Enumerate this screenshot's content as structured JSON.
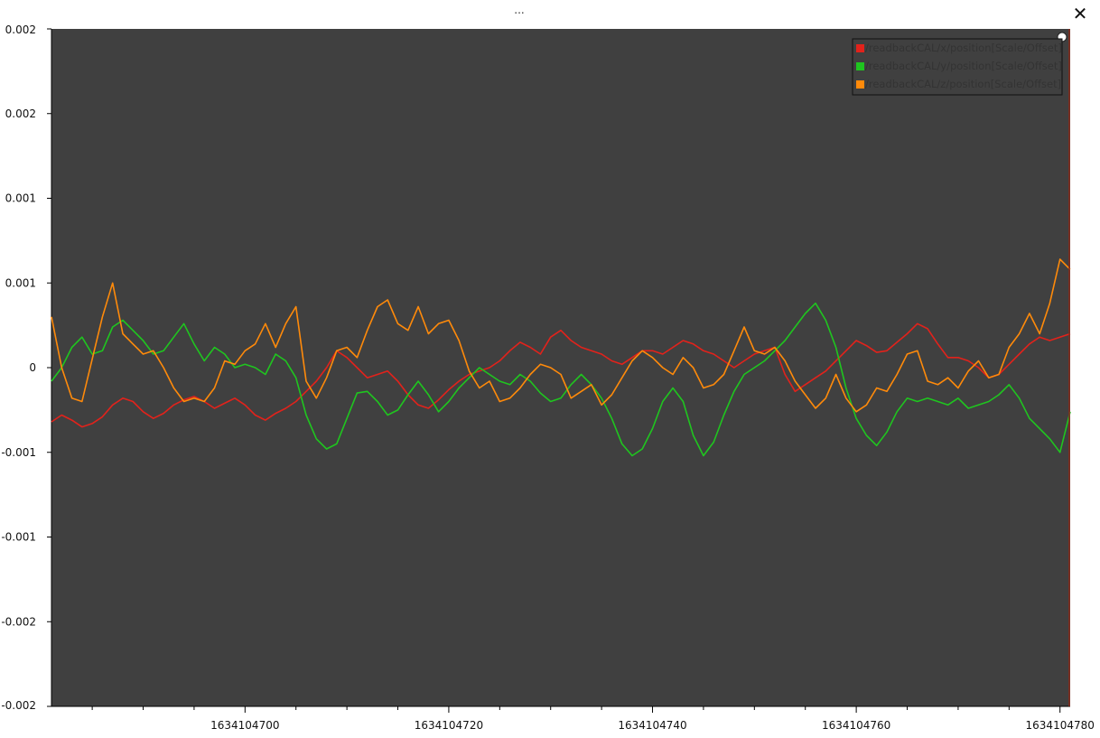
{
  "window": {
    "title": "...",
    "close_glyph": "✕"
  },
  "colors": {
    "background": "#ffffff",
    "plot_background": "#404040",
    "x": "#e2221b",
    "y": "#1fc51f",
    "z": "#ff8a0a",
    "legend_border": "#111111",
    "legend_text": "#333333"
  },
  "chart_data": {
    "type": "line",
    "title": "",
    "xlabel": "",
    "ylabel": "",
    "xlim": [
      1634104681,
      1634104781
    ],
    "ylim": [
      -0.002,
      0.002
    ],
    "grid": false,
    "legend_position": "top-right",
    "x_ticks": [
      {
        "value": 1634104700,
        "label": "1634104700"
      },
      {
        "value": 1634104720,
        "label": "1634104720"
      },
      {
        "value": 1634104740,
        "label": "1634104740"
      },
      {
        "value": 1634104760,
        "label": "1634104760"
      },
      {
        "value": 1634104780,
        "label": "1634104780"
      }
    ],
    "y_ticks": [
      {
        "value": 0.002,
        "label": "0.002"
      },
      {
        "value": 0.0015,
        "label": "0.002"
      },
      {
        "value": 0.001,
        "label": "0.001"
      },
      {
        "value": 0.0005,
        "label": "0.001"
      },
      {
        "value": 0.0,
        "label": "0"
      },
      {
        "value": -0.0005,
        "label": "-0.001"
      },
      {
        "value": -0.001,
        "label": "-0.001"
      },
      {
        "value": -0.0015,
        "label": "-0.002"
      },
      {
        "value": -0.002,
        "label": "-0.002"
      }
    ],
    "series": [
      {
        "name": "/readbackCAL/x/position[Scale/Offset]",
        "color_key": "x",
        "x": [
          1634104681,
          1634104682,
          1634104683,
          1634104684,
          1634104685,
          1634104686,
          1634104687,
          1634104688,
          1634104689,
          1634104690,
          1634104691,
          1634104692,
          1634104693,
          1634104694,
          1634104695,
          1634104696,
          1634104697,
          1634104698,
          1634104699,
          1634104700,
          1634104701,
          1634104702,
          1634104703,
          1634104704,
          1634104705,
          1634104706,
          1634104707,
          1634104708,
          1634104709,
          1634104710,
          1634104711,
          1634104712,
          1634104713,
          1634104714,
          1634104715,
          1634104716,
          1634104717,
          1634104718,
          1634104719,
          1634104720,
          1634104721,
          1634104722,
          1634104723,
          1634104724,
          1634104725,
          1634104726,
          1634104727,
          1634104728,
          1634104729,
          1634104730,
          1634104731,
          1634104732,
          1634104733,
          1634104734,
          1634104735,
          1634104736,
          1634104737,
          1634104738,
          1634104739,
          1634104740,
          1634104741,
          1634104742,
          1634104743,
          1634104744,
          1634104745,
          1634104746,
          1634104747,
          1634104748,
          1634104749,
          1634104750,
          1634104751,
          1634104752,
          1634104753,
          1634104754,
          1634104755,
          1634104756,
          1634104757,
          1634104758,
          1634104759,
          1634104760,
          1634104761,
          1634104762,
          1634104763,
          1634104764,
          1634104765,
          1634104766,
          1634104767,
          1634104768,
          1634104769,
          1634104770,
          1634104771,
          1634104772,
          1634104773,
          1634104774,
          1634104775,
          1634104776,
          1634104777,
          1634104778,
          1634104779,
          1634104780,
          1634104781
        ],
        "y": [
          -0.00032,
          -0.00028,
          -0.00031,
          -0.00035,
          -0.00033,
          -0.00029,
          -0.00022,
          -0.00018,
          -0.0002,
          -0.00026,
          -0.0003,
          -0.00027,
          -0.00022,
          -0.00019,
          -0.00017,
          -0.0002,
          -0.00024,
          -0.00021,
          -0.00018,
          -0.00022,
          -0.00028,
          -0.00031,
          -0.00027,
          -0.00024,
          -0.0002,
          -0.00014,
          -8e-05,
          0.0,
          0.0001,
          6e-05,
          0.0,
          -6e-05,
          -4e-05,
          -2e-05,
          -8e-05,
          -0.00016,
          -0.00022,
          -0.00024,
          -0.00019,
          -0.00013,
          -8e-05,
          -4e-05,
          -2e-05,
          0.0,
          4e-05,
          0.0001,
          0.00015,
          0.00012,
          8e-05,
          0.00018,
          0.00022,
          0.00016,
          0.00012,
          0.0001,
          8e-05,
          4e-05,
          2e-05,
          6e-05,
          0.0001,
          0.0001,
          8e-05,
          0.00012,
          0.00016,
          0.00014,
          0.0001,
          8e-05,
          4e-05,
          0.0,
          4e-05,
          8e-05,
          0.0001,
          0.00012,
          -4e-05,
          -0.00014,
          -0.0001,
          -6e-05,
          -2e-05,
          4e-05,
          0.0001,
          0.00016,
          0.00013,
          9e-05,
          0.0001,
          0.00015,
          0.0002,
          0.00026,
          0.00023,
          0.00014,
          6e-05,
          6e-05,
          4e-05,
          0.0,
          -6e-05,
          -4e-05,
          2e-05,
          8e-05,
          0.00014,
          0.00018,
          0.00016,
          0.00018,
          0.0002
        ]
      },
      {
        "name": "/readbackCAL/y/position[Scale/Offset]",
        "color_key": "y",
        "x": [
          1634104681,
          1634104682,
          1634104683,
          1634104684,
          1634104685,
          1634104686,
          1634104687,
          1634104688,
          1634104689,
          1634104690,
          1634104691,
          1634104692,
          1634104693,
          1634104694,
          1634104695,
          1634104696,
          1634104697,
          1634104698,
          1634104699,
          1634104700,
          1634104701,
          1634104702,
          1634104703,
          1634104704,
          1634104705,
          1634104706,
          1634104707,
          1634104708,
          1634104709,
          1634104710,
          1634104711,
          1634104712,
          1634104713,
          1634104714,
          1634104715,
          1634104716,
          1634104717,
          1634104718,
          1634104719,
          1634104720,
          1634104721,
          1634104722,
          1634104723,
          1634104724,
          1634104725,
          1634104726,
          1634104727,
          1634104728,
          1634104729,
          1634104730,
          1634104731,
          1634104732,
          1634104733,
          1634104734,
          1634104735,
          1634104736,
          1634104737,
          1634104738,
          1634104739,
          1634104740,
          1634104741,
          1634104742,
          1634104743,
          1634104744,
          1634104745,
          1634104746,
          1634104747,
          1634104748,
          1634104749,
          1634104750,
          1634104751,
          1634104752,
          1634104753,
          1634104754,
          1634104755,
          1634104756,
          1634104757,
          1634104758,
          1634104759,
          1634104760,
          1634104761,
          1634104762,
          1634104763,
          1634104764,
          1634104765,
          1634104766,
          1634104767,
          1634104768,
          1634104769,
          1634104770,
          1634104771,
          1634104772,
          1634104773,
          1634104774,
          1634104775,
          1634104776,
          1634104777,
          1634104778,
          1634104779,
          1634104780,
          1634104781
        ],
        "y": [
          -8e-05,
          0.0,
          0.00012,
          0.00018,
          8e-05,
          0.0001,
          0.00024,
          0.00028,
          0.00022,
          0.00016,
          8e-05,
          0.0001,
          0.00018,
          0.00026,
          0.00014,
          4e-05,
          0.00012,
          8e-05,
          0.0,
          2e-05,
          0.0,
          -4e-05,
          8e-05,
          4e-05,
          -6e-05,
          -0.00028,
          -0.00042,
          -0.00048,
          -0.00045,
          -0.0003,
          -0.00015,
          -0.00014,
          -0.0002,
          -0.00028,
          -0.00025,
          -0.00016,
          -8e-05,
          -0.00016,
          -0.00026,
          -0.0002,
          -0.00012,
          -6e-05,
          0.0,
          -4e-05,
          -8e-05,
          -0.0001,
          -4e-05,
          -8e-05,
          -0.00015,
          -0.0002,
          -0.00018,
          -0.0001,
          -4e-05,
          -0.0001,
          -0.00018,
          -0.0003,
          -0.00045,
          -0.00052,
          -0.00048,
          -0.00036,
          -0.0002,
          -0.00012,
          -0.0002,
          -0.0004,
          -0.00052,
          -0.00044,
          -0.00028,
          -0.00014,
          -4e-05,
          0.0,
          4e-05,
          0.0001,
          0.00016,
          0.00024,
          0.00032,
          0.00038,
          0.00028,
          0.00012,
          -0.00012,
          -0.0003,
          -0.0004,
          -0.00046,
          -0.00038,
          -0.00026,
          -0.00018,
          -0.0002,
          -0.00018,
          -0.0002,
          -0.00022,
          -0.00018,
          -0.00024,
          -0.00022,
          -0.0002,
          -0.00016,
          -0.0001,
          -0.00018,
          -0.0003,
          -0.00036,
          -0.00042,
          -0.0005,
          -0.00026
        ]
      },
      {
        "name": "/readbackCAL/z/position[Scale/Offset]",
        "color_key": "z",
        "x": [
          1634104681,
          1634104682,
          1634104683,
          1634104684,
          1634104685,
          1634104686,
          1634104687,
          1634104688,
          1634104689,
          1634104690,
          1634104691,
          1634104692,
          1634104693,
          1634104694,
          1634104695,
          1634104696,
          1634104697,
          1634104698,
          1634104699,
          1634104700,
          1634104701,
          1634104702,
          1634104703,
          1634104704,
          1634104705,
          1634104706,
          1634104707,
          1634104708,
          1634104709,
          1634104710,
          1634104711,
          1634104712,
          1634104713,
          1634104714,
          1634104715,
          1634104716,
          1634104717,
          1634104718,
          1634104719,
          1634104720,
          1634104721,
          1634104722,
          1634104723,
          1634104724,
          1634104725,
          1634104726,
          1634104727,
          1634104728,
          1634104729,
          1634104730,
          1634104731,
          1634104732,
          1634104733,
          1634104734,
          1634104735,
          1634104736,
          1634104737,
          1634104738,
          1634104739,
          1634104740,
          1634104741,
          1634104742,
          1634104743,
          1634104744,
          1634104745,
          1634104746,
          1634104747,
          1634104748,
          1634104749,
          1634104750,
          1634104751,
          1634104752,
          1634104753,
          1634104754,
          1634104755,
          1634104756,
          1634104757,
          1634104758,
          1634104759,
          1634104760,
          1634104761,
          1634104762,
          1634104763,
          1634104764,
          1634104765,
          1634104766,
          1634104767,
          1634104768,
          1634104769,
          1634104770,
          1634104771,
          1634104772,
          1634104773,
          1634104774,
          1634104775,
          1634104776,
          1634104777,
          1634104778,
          1634104779,
          1634104780,
          1634104781
        ],
        "y": [
          0.0003,
          0.0,
          -0.00018,
          -0.0002,
          5e-05,
          0.0003,
          0.0005,
          0.0002,
          0.00014,
          8e-05,
          0.0001,
          0.0,
          -0.00012,
          -0.0002,
          -0.00018,
          -0.0002,
          -0.00012,
          4e-05,
          2e-05,
          0.0001,
          0.00014,
          0.00026,
          0.00012,
          0.00026,
          0.00036,
          -8e-05,
          -0.00018,
          -6e-05,
          0.0001,
          0.00012,
          6e-05,
          0.00022,
          0.00036,
          0.0004,
          0.00026,
          0.00022,
          0.00036,
          0.0002,
          0.00026,
          0.00028,
          0.00016,
          -2e-05,
          -0.00012,
          -8e-05,
          -0.0002,
          -0.00018,
          -0.00012,
          -4e-05,
          2e-05,
          0.0,
          -4e-05,
          -0.00018,
          -0.00014,
          -0.0001,
          -0.00022,
          -0.00016,
          -6e-05,
          4e-05,
          0.0001,
          6e-05,
          0.0,
          -4e-05,
          6e-05,
          0.0,
          -0.00012,
          -0.0001,
          -4e-05,
          0.0001,
          0.00024,
          0.0001,
          8e-05,
          0.00012,
          4e-05,
          -8e-05,
          -0.00016,
          -0.00024,
          -0.00018,
          -4e-05,
          -0.00018,
          -0.00026,
          -0.00022,
          -0.00012,
          -0.00014,
          -4e-05,
          8e-05,
          0.0001,
          -8e-05,
          -0.0001,
          -6e-05,
          -0.00012,
          -2e-05,
          4e-05,
          -6e-05,
          -4e-05,
          0.00012,
          0.0002,
          0.00032,
          0.0002,
          0.00038,
          0.00064,
          0.00058
        ]
      }
    ]
  }
}
